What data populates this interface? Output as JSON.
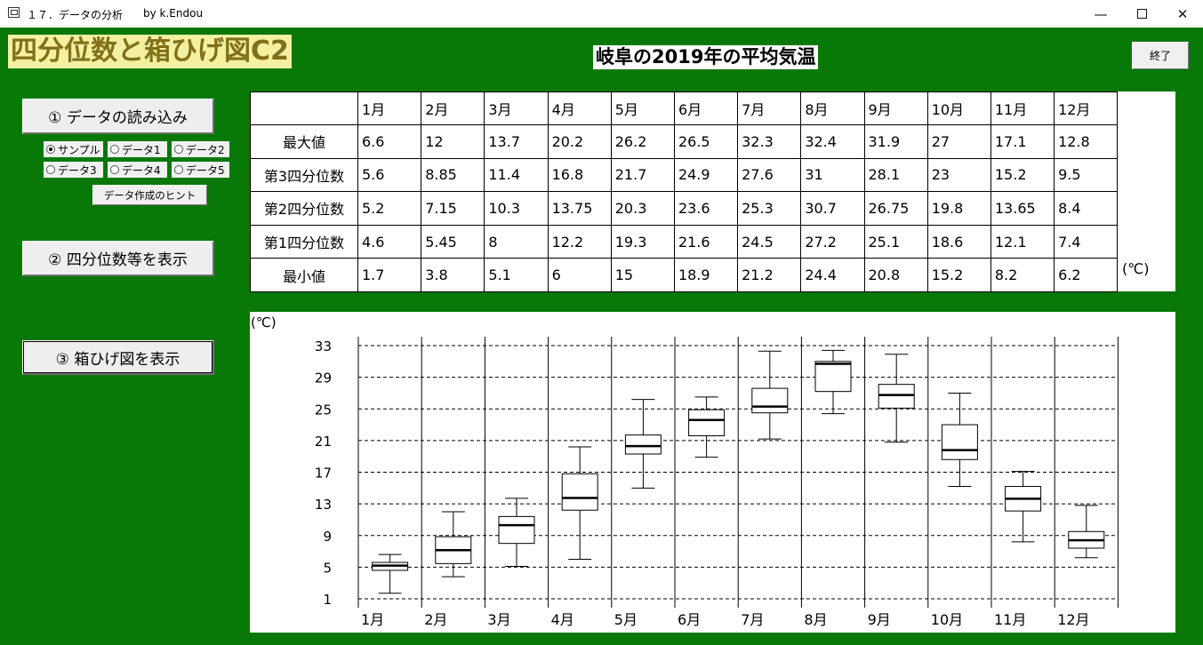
{
  "window": {
    "title": "１７．データの分析",
    "author": "by k.Endou",
    "minimize_glyph": "—",
    "close_glyph": "✕"
  },
  "header": {
    "main_title": "四分位数と箱ひげ図C2",
    "sub_title": "岐阜の2019年の平均気温",
    "exit_label": "終了"
  },
  "controls": {
    "load_label": "① データの読み込み",
    "radios": [
      {
        "label": "サンプル",
        "checked": true
      },
      {
        "label": "データ1",
        "checked": false
      },
      {
        "label": "データ2",
        "checked": false
      },
      {
        "label": "データ3",
        "checked": false
      },
      {
        "label": "データ4",
        "checked": false
      },
      {
        "label": "データ5",
        "checked": false
      }
    ],
    "hint_label": "データ作成のヒント",
    "quartile_label": "② 四分位数等を表示",
    "boxplot_label": "③ 箱ひげ図を表示"
  },
  "table": {
    "months": [
      "1月",
      "2月",
      "3月",
      "4月",
      "5月",
      "6月",
      "7月",
      "8月",
      "9月",
      "10月",
      "11月",
      "12月"
    ],
    "rows": [
      {
        "label": "最大値",
        "values": [
          "6.6",
          "12",
          "13.7",
          "20.2",
          "26.2",
          "26.5",
          "32.3",
          "32.4",
          "31.9",
          "27",
          "17.1",
          "12.8"
        ]
      },
      {
        "label": "第3四分位数",
        "values": [
          "5.6",
          "8.85",
          "11.4",
          "16.8",
          "21.7",
          "24.9",
          "27.6",
          "31",
          "28.1",
          "23",
          "15.2",
          "9.5"
        ]
      },
      {
        "label": "第2四分位数",
        "values": [
          "5.2",
          "7.15",
          "10.3",
          "13.75",
          "20.3",
          "23.6",
          "25.3",
          "30.7",
          "26.75",
          "19.8",
          "13.65",
          "8.4"
        ]
      },
      {
        "label": "第1四分位数",
        "values": [
          "4.6",
          "5.45",
          "8",
          "12.2",
          "19.3",
          "21.6",
          "24.5",
          "27.2",
          "25.1",
          "18.6",
          "12.1",
          "7.4"
        ]
      },
      {
        "label": "最小値",
        "values": [
          "1.7",
          "3.8",
          "5.1",
          "6",
          "15",
          "18.9",
          "21.2",
          "24.4",
          "20.8",
          "15.2",
          "8.2",
          "6.2"
        ]
      }
    ],
    "unit": "(℃)"
  },
  "chart_data": {
    "type": "boxplot",
    "ylabel": "(℃)",
    "ylim": [
      1,
      33
    ],
    "yticks": [
      1,
      5,
      9,
      13,
      17,
      21,
      25,
      29,
      33
    ],
    "grid": true,
    "categories": [
      "1月",
      "2月",
      "3月",
      "4月",
      "5月",
      "6月",
      "7月",
      "8月",
      "9月",
      "10月",
      "11月",
      "12月"
    ],
    "max": [
      6.6,
      12,
      13.7,
      20.2,
      26.2,
      26.5,
      32.3,
      32.4,
      31.9,
      27,
      17.1,
      12.8
    ],
    "q3": [
      5.6,
      8.85,
      11.4,
      16.8,
      21.7,
      24.9,
      27.6,
      31,
      28.1,
      23,
      15.2,
      9.5
    ],
    "median": [
      5.2,
      7.15,
      10.3,
      13.75,
      20.3,
      23.6,
      25.3,
      30.7,
      26.75,
      19.8,
      13.65,
      8.4
    ],
    "q1": [
      4.6,
      5.45,
      8,
      12.2,
      19.3,
      21.6,
      24.5,
      27.2,
      25.1,
      18.6,
      12.1,
      7.4
    ],
    "min": [
      1.7,
      3.8,
      5.1,
      6,
      15,
      18.9,
      21.2,
      24.4,
      20.8,
      15.2,
      8.2,
      6.2
    ]
  }
}
